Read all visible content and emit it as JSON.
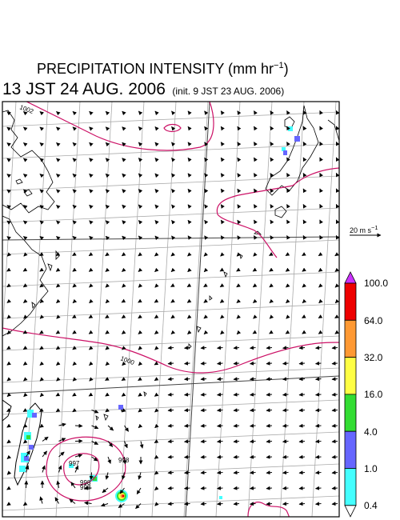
{
  "header": {
    "title_prefix": "PRECIPITATION INTENSITY (mm hr",
    "title_exp": "−1",
    "title_suffix": ")",
    "valid_time": "13 JST 24 AUG. 2006",
    "init_time": "(init. 9 JST 23 AUG. 2006)"
  },
  "scale_arrow": {
    "label": "20 m s",
    "exp": "−1"
  },
  "colorbar": {
    "labels": [
      "100.0",
      "64.0",
      "32.0",
      "16.0",
      "4.0",
      "1.0",
      "0.4"
    ],
    "colors": [
      "#cc33ff",
      "#ee0000",
      "#ff9933",
      "#ffff44",
      "#33dd33",
      "#6666ff",
      "#44ffff",
      "#ffffff"
    ]
  },
  "contours": {
    "labels": [
      "1002",
      "1000",
      "998",
      "998",
      "997",
      "998"
    ],
    "color": "#cc1166"
  },
  "wind_field": {
    "description_colors": {
      "arrow": "#000000",
      "grid": "#aaaaaa",
      "coast": "#000000"
    }
  }
}
